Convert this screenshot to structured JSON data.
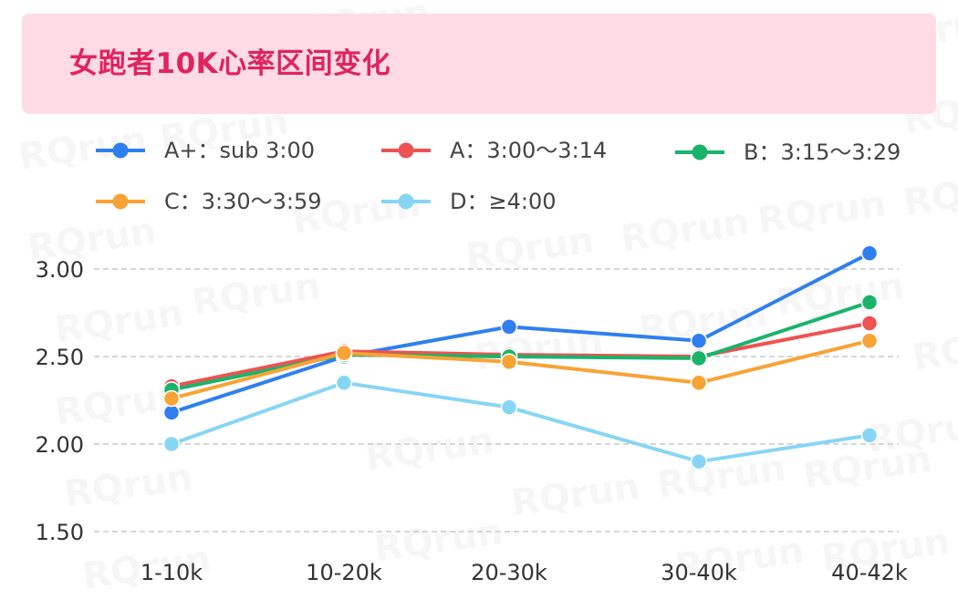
{
  "chart_data": {
    "type": "line",
    "title": "女跑者10K心率区间变化",
    "categories": [
      "1-10k",
      "10-20k",
      "20-30k",
      "30-40k",
      "40-42k"
    ],
    "ylim": [
      1.5,
      3.0
    ],
    "yticks": [
      "3.00",
      "2.50",
      "2.00",
      "1.50"
    ],
    "ytick_values": [
      3.0,
      2.5,
      2.0,
      1.5
    ],
    "grid": true,
    "legend_position": "top",
    "series": [
      {
        "name": "A+：sub 3:00",
        "color": "#2f7ff0",
        "values": [
          2.18,
          2.5,
          2.67,
          2.59,
          3.09
        ]
      },
      {
        "name": "A：3:00～3:14",
        "color": "#ee5252",
        "values": [
          2.33,
          2.53,
          2.51,
          2.5,
          2.69
        ]
      },
      {
        "name": "B：3:15～3:29",
        "color": "#1ab36b",
        "values": [
          2.31,
          2.51,
          2.5,
          2.49,
          2.81
        ]
      },
      {
        "name": "C：3:30～3:59",
        "color": "#f8a335",
        "values": [
          2.26,
          2.52,
          2.47,
          2.35,
          2.59
        ]
      },
      {
        "name": "D：≥4:00",
        "color": "#87d5f5",
        "values": [
          2.0,
          2.35,
          2.21,
          1.9,
          2.05
        ]
      }
    ]
  },
  "watermark": "RQrun"
}
